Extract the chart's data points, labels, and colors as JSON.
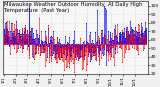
{
  "title": "Milwaukee Weather Outdoor Humidity  At Daily High  Temperature  (Past Year)",
  "title_fontsize": 3.8,
  "background_color": "#f0f0f0",
  "plot_bg_color": "#f8f8f8",
  "grid_color": "#bbbbbb",
  "n_days": 365,
  "ylim": [
    20,
    105
  ],
  "yticks": [
    20,
    30,
    40,
    50,
    60,
    70,
    80,
    90,
    100
  ],
  "ylabel_fontsize": 3.2,
  "xlabel_fontsize": 3.0,
  "line_width": 0.5,
  "marker_size": 0.6,
  "seed": 42
}
